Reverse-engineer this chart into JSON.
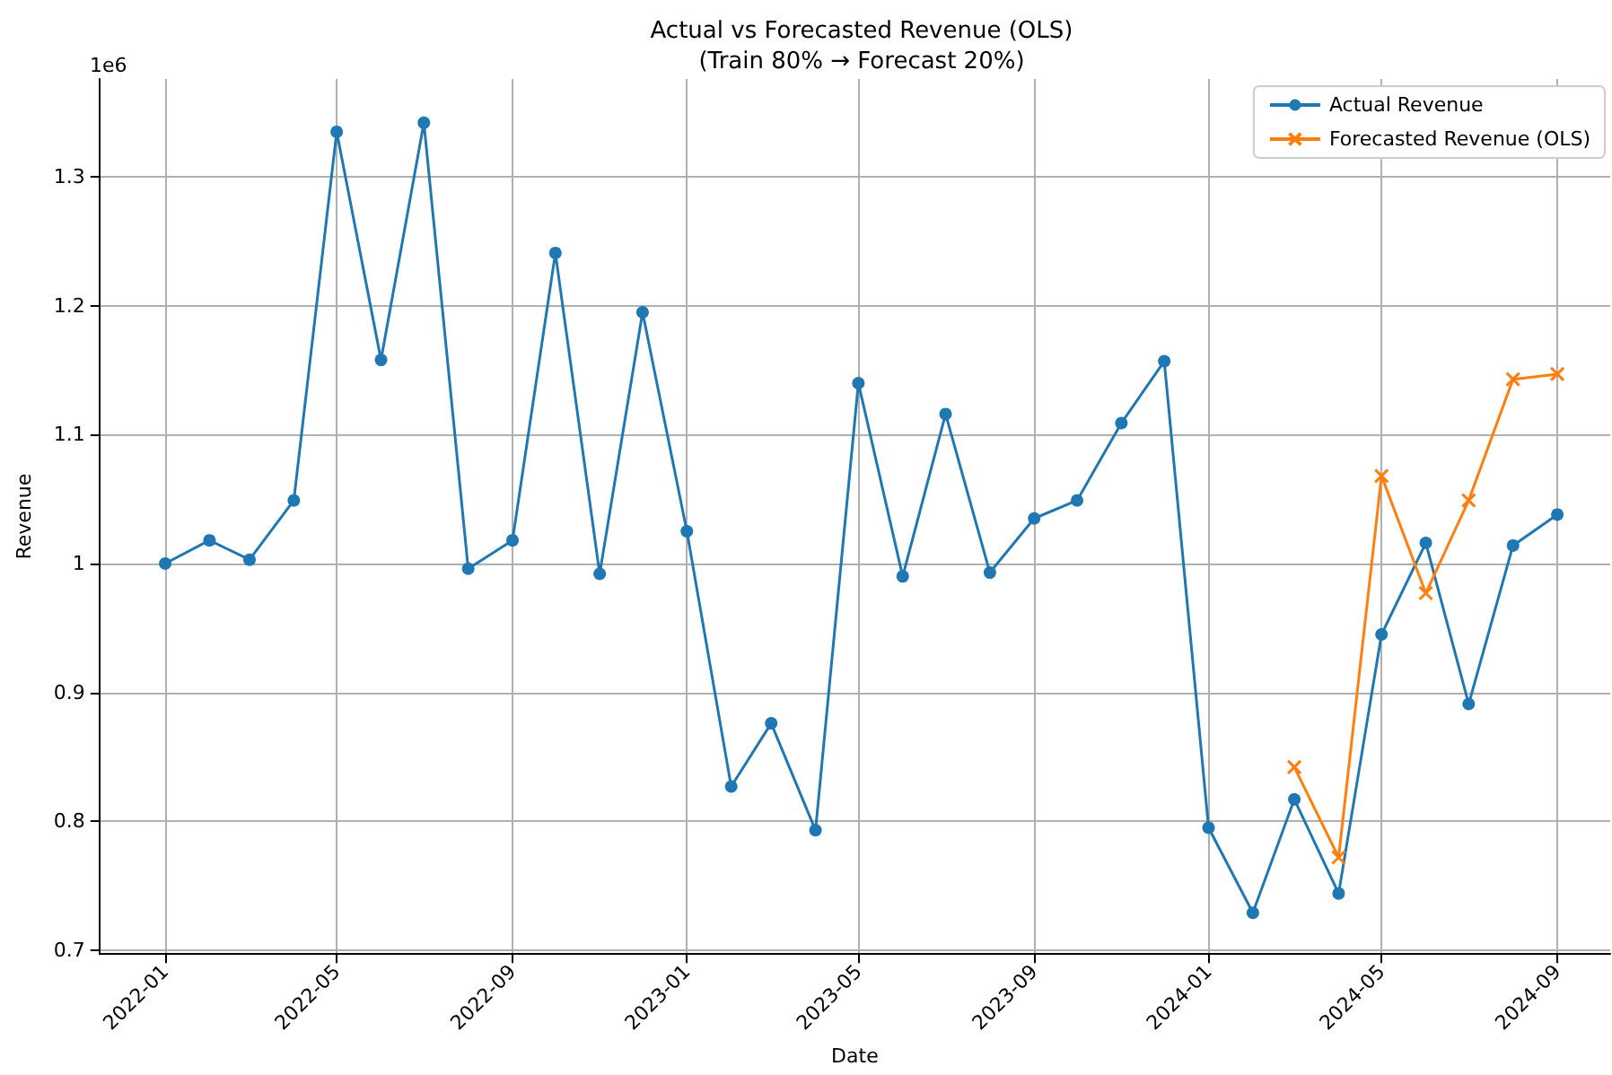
{
  "chart_data": {
    "type": "line",
    "title": "Actual vs Forecasted Revenue (OLS)",
    "subtitle": "(Train 80% → Forecast 20%)",
    "xlabel": "Date",
    "ylabel": "Revenue",
    "annotations": [
      "1e6"
    ],
    "x": [
      "2022-01",
      "2022-02",
      "2022-03",
      "2022-04",
      "2022-05",
      "2022-06",
      "2022-07",
      "2022-08",
      "2022-09",
      "2022-10",
      "2022-11",
      "2022-12",
      "2023-01",
      "2023-02",
      "2023-03",
      "2023-04",
      "2023-05",
      "2023-06",
      "2023-07",
      "2023-08",
      "2023-09",
      "2023-10",
      "2023-11",
      "2023-12",
      "2024-01",
      "2024-02",
      "2024-03",
      "2024-04",
      "2024-05",
      "2024-06",
      "2024-07",
      "2024-08",
      "2024-09"
    ],
    "series": [
      {
        "name": "Actual Revenue",
        "color": "#1f77b4",
        "marker": "circle",
        "values": [
          1.0,
          1.018,
          1.003,
          1.049,
          1.335,
          1.158,
          1.342,
          0.996,
          1.018,
          1.241,
          0.992,
          1.195,
          1.025,
          0.827,
          0.876,
          0.793,
          1.14,
          0.99,
          1.116,
          0.993,
          1.035,
          1.049,
          1.109,
          1.157,
          0.795,
          0.729,
          0.817,
          0.744,
          0.945,
          1.016,
          0.891,
          1.014,
          1.038
        ]
      },
      {
        "name": "Forecasted Revenue (OLS)",
        "color": "#ff7f0e",
        "marker": "cross",
        "x": [
          "2024-03",
          "2024-04",
          "2024-05",
          "2024-06",
          "2024-07",
          "2024-08",
          "2024-09"
        ],
        "values": [
          0.842,
          0.772,
          1.068,
          0.977,
          1.049,
          1.143,
          1.147
        ]
      }
    ],
    "xlim": [
      "2021-11-16",
      "2024-10-08"
    ],
    "xticks": [
      "2022-01",
      "2022-05",
      "2022-09",
      "2023-01",
      "2023-05",
      "2023-09",
      "2024-01",
      "2024-05",
      "2024-09"
    ],
    "ylim": [
      0.697,
      1.376
    ],
    "yticks": [
      0.7,
      0.8,
      0.9,
      1.0,
      1.1,
      1.2,
      1.3
    ],
    "grid": true,
    "legend": "top right",
    "line_style": "solid"
  }
}
